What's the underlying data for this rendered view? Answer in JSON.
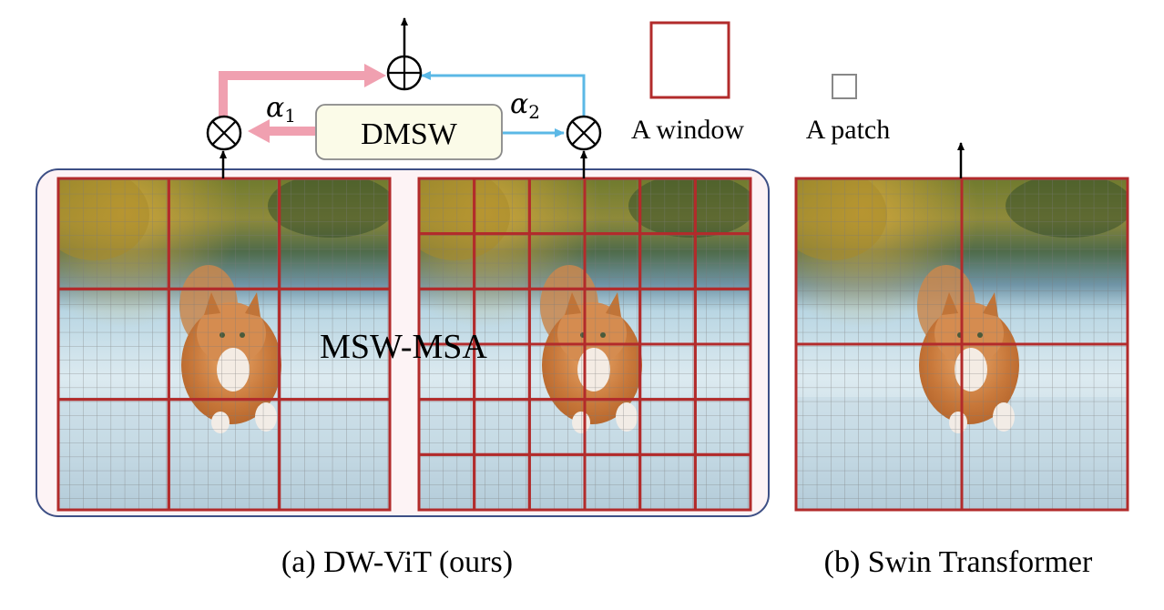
{
  "module_label": "DMSW",
  "alpha1": {
    "symbol": "α",
    "sub": "1"
  },
  "alpha2": {
    "symbol": "α",
    "sub": "2"
  },
  "center_label": "MSW-MSA",
  "legend": {
    "window_label": "A window",
    "patch_label": "A patch"
  },
  "captions": {
    "a": "(a) DW-ViT (ours)",
    "b": "(b) Swin Transformer"
  },
  "colors": {
    "window_border": "#b22b2b",
    "branch1_arrow": "#f0a0b0",
    "branch2_arrow": "#5bb8e6",
    "dmsw_fill": "#fbfbe8",
    "panel_border": "#3d4f85",
    "panel_fill": "#fdf3f5"
  },
  "panels": {
    "left_windows_per_side": 3,
    "middle_windows_per_side": 6,
    "swin_windows_per_side": 2,
    "patches_per_side": 24
  }
}
